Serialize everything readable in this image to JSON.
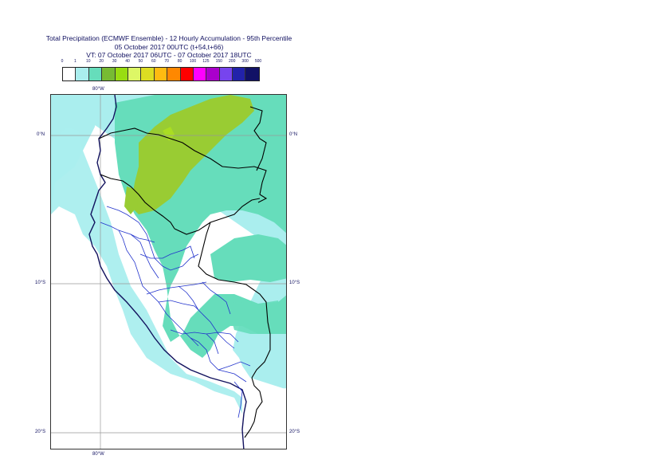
{
  "title": {
    "line1": "Total Precipitation (ECMWF Ensemble) - 12 Hourly Accumulation - 95th Percentile",
    "line2": "05 October 2017 00UTC (t+54,t+66)",
    "line3": "VT: 07 October 2017 06UTC - 07 October 2017 18UTC"
  },
  "legend": {
    "labels": [
      "0",
      "1",
      "10",
      "20",
      "30",
      "40",
      "50",
      "60",
      "70",
      "80",
      "100",
      "125",
      "150",
      "200",
      "300",
      "500"
    ],
    "colors": [
      "#ffffff",
      "#aaeeee",
      "#66ddbb",
      "#77bb33",
      "#99dd11",
      "#ddf766",
      "#dddd22",
      "#ffbb11",
      "#ff8800",
      "#ff0000",
      "#ff00ff",
      "#aa00cc",
      "#7744ee",
      "#2222aa",
      "#111166"
    ]
  },
  "axes": {
    "lon_top": "80°W",
    "lon_bottom": "80°W",
    "lat_0_left": "0°N",
    "lat_0_right": "0°N",
    "lat_10_left": "10°S",
    "lat_10_right": "10°S",
    "lat_20_left": "20°S",
    "lat_20_right": "20°S"
  },
  "colors": {
    "coast": "#12125e",
    "border": "#000000",
    "admin": "#2233cc",
    "grid": "#999999",
    "light_cyan": "#aaeeee",
    "medium_green": "#66ddbb",
    "olive": "#99cc33"
  }
}
